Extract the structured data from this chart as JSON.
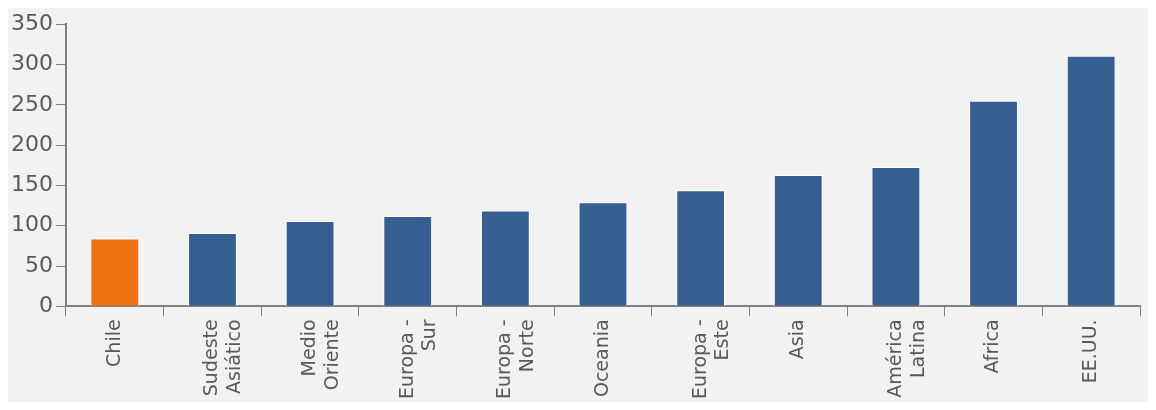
{
  "chart_data": {
    "type": "bar",
    "categories": [
      "Chile",
      "Sudeste Asiático",
      "Medio Oriente",
      "Europa - Sur",
      "Europa - Norte",
      "Oceania",
      "Europa - Este",
      "Asia",
      "América Latina",
      "Africa",
      "EE.UU."
    ],
    "values": [
      84,
      91,
      106,
      112,
      119,
      129,
      144,
      163,
      173,
      255,
      311
    ],
    "colors": [
      "#ef720e",
      "#355f91",
      "#355f91",
      "#355f91",
      "#355f91",
      "#355f91",
      "#355f91",
      "#355f91",
      "#355f91",
      "#355f91",
      "#355f91"
    ],
    "ylim": [
      0,
      350
    ],
    "yticks": [
      0,
      50,
      100,
      150,
      200,
      250,
      300,
      350
    ],
    "grid": false,
    "legend": false
  }
}
